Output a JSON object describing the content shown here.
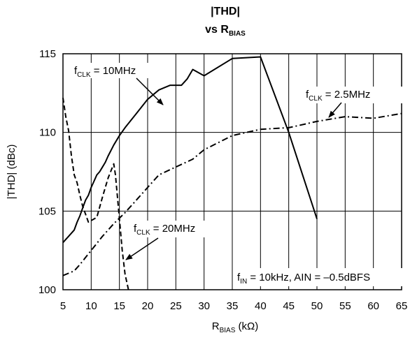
{
  "chart_data": {
    "type": "line",
    "title_line1": "|THD|",
    "title_line2_main": "vs R",
    "title_line2_sub": "BIAS",
    "xlabel_main": "R",
    "xlabel_sub": "BIAS",
    "xlabel_unit": " (kΩ)",
    "ylabel": "|THD| (dBc)",
    "xlim": [
      5,
      65
    ],
    "ylim": [
      100,
      115
    ],
    "xticks": [
      5,
      10,
      15,
      20,
      25,
      30,
      35,
      40,
      45,
      50,
      55,
      60,
      65
    ],
    "yticks": [
      100,
      105,
      110,
      115
    ],
    "grid": true,
    "series": [
      {
        "name": "fCLK = 10MHz",
        "style": "solid",
        "x": [
          5,
          5.5,
          6,
          6.5,
          7,
          7.5,
          8,
          8.5,
          9,
          9.5,
          10,
          10.5,
          11,
          11.5,
          12,
          12.5,
          13,
          14,
          15,
          16,
          18,
          20,
          22,
          24,
          25,
          26,
          27,
          28,
          29,
          30,
          35,
          40,
          45,
          50
        ],
        "y": [
          103.0,
          103.2,
          103.4,
          103.6,
          103.8,
          104.3,
          104.7,
          105.2,
          105.7,
          106.0,
          106.5,
          106.9,
          107.3,
          107.5,
          107.8,
          108.1,
          108.5,
          109.2,
          109.8,
          110.3,
          111.2,
          112.1,
          112.7,
          113.0,
          113.0,
          113.0,
          113.4,
          114.0,
          113.8,
          113.6,
          114.7,
          114.8,
          110.0,
          104.5
        ]
      },
      {
        "name": "fCLK = 2.5MHz",
        "style": "dashdot",
        "x": [
          5,
          7,
          8,
          10,
          12,
          14,
          16,
          18,
          20,
          22,
          25,
          28,
          30,
          35,
          40,
          45,
          50,
          55,
          60,
          65
        ],
        "y": [
          100.9,
          101.2,
          101.6,
          102.5,
          103.4,
          104.2,
          104.9,
          105.7,
          106.5,
          107.3,
          107.8,
          108.3,
          108.9,
          109.8,
          110.2,
          110.3,
          110.7,
          111.0,
          110.9,
          111.2
        ]
      },
      {
        "name": "fCLK = 20MHz",
        "style": "dashed",
        "x": [
          5,
          5.5,
          6,
          6.5,
          7,
          7.5,
          8,
          8.5,
          9,
          9.5,
          10,
          11,
          12,
          13,
          14,
          14.3,
          15,
          15.5,
          16,
          16.6
        ],
        "y": [
          112.2,
          111.0,
          110.1,
          108.5,
          107.3,
          106.8,
          106.0,
          105.3,
          104.8,
          104.3,
          104.4,
          104.6,
          105.9,
          107.1,
          108.0,
          107.3,
          104.5,
          102.5,
          101.0,
          100.0
        ]
      }
    ],
    "annotations": {
      "clk10": {
        "main": "f",
        "sub": "CLK",
        "rest": " = 10MHz"
      },
      "clk25": {
        "main": "f",
        "sub": "CLK",
        "rest": " = 2.5MHz"
      },
      "clk20": {
        "main": "f",
        "sub": "CLK",
        "rest": " = 20MHz"
      },
      "cond": {
        "main": "f",
        "sub": "IN",
        "rest": " = 10kHz, AIN = –0.5dBFS"
      }
    }
  }
}
